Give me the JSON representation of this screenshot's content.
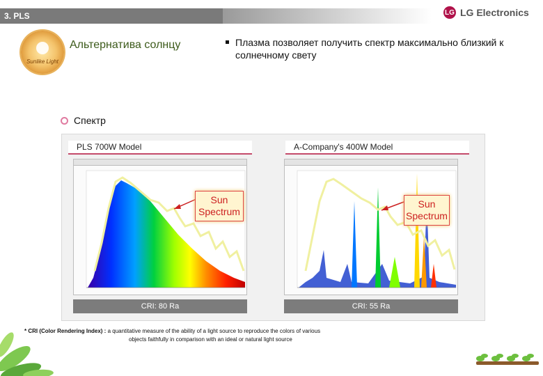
{
  "header": {
    "section": "3. PLS",
    "brand": "LG Electronics",
    "brand_mark": "LG"
  },
  "badge": {
    "caption": "Sunlike Light"
  },
  "intro": {
    "title": "Альтернатива солнцу",
    "bullet": "Плазма позволяет получить спектр максимально близкий к солнечному свету"
  },
  "section": {
    "title": "Спектр"
  },
  "panels": [
    {
      "model": "PLS 700W Model",
      "cri": "CRI: 80 Ra",
      "callout_line1": "Sun",
      "callout_line2": "Spectrum"
    },
    {
      "model": "A-Company's 400W Model",
      "cri": "CRI: 55 Ra",
      "callout_line1": "Sun",
      "callout_line2": "Spectrum"
    }
  ],
  "footnote": {
    "label": "* CRI (Color Rendering Index) :",
    "text1": "a quantitative measure of the ability of a light source to reproduce the colors of various",
    "text2": "objects faithfully in comparison with an ideal or natural light source"
  },
  "colors": {
    "accent": "#c44a6a",
    "callout_text": "#cc2020",
    "cri_bar": "#7c7c7c"
  }
}
